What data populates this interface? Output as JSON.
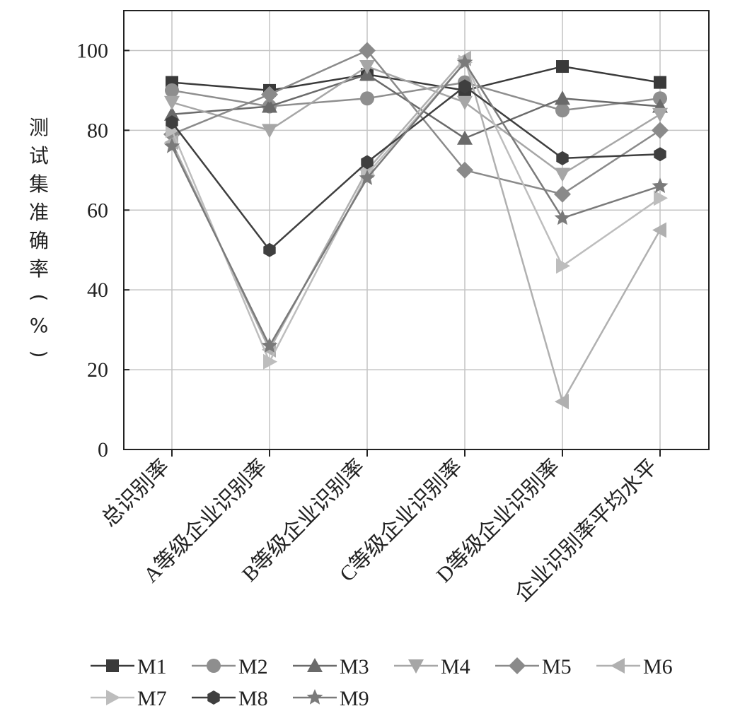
{
  "chart_data": {
    "type": "line",
    "title": "",
    "xlabel": "",
    "ylabel": "测试集准确率(%)",
    "ylim": [
      0,
      110
    ],
    "yticks": [
      0,
      20,
      40,
      60,
      80,
      100
    ],
    "grid": true,
    "legend_position": "bottom",
    "categories": [
      "总识别率",
      "A等级企业识别率",
      "B等级企业识别率",
      "C等级企业识别率",
      "D等级企业识别率",
      "企业识别率平均水平"
    ],
    "series": [
      {
        "name": "M1",
        "marker": "square",
        "color": "#3a3a3a",
        "values": [
          92,
          90,
          94,
          90,
          96,
          92
        ]
      },
      {
        "name": "M2",
        "marker": "circle",
        "color": "#8e8e8e",
        "values": [
          90,
          86,
          88,
          92,
          85,
          88
        ]
      },
      {
        "name": "M3",
        "marker": "triangle-up",
        "color": "#6a6a6a",
        "values": [
          84,
          86,
          94,
          78,
          88,
          86
        ]
      },
      {
        "name": "M4",
        "marker": "triangle-down",
        "color": "#a6a6a6",
        "values": [
          87,
          80,
          96,
          87,
          69,
          84
        ]
      },
      {
        "name": "M5",
        "marker": "diamond",
        "color": "#8a8a8a",
        "values": [
          79,
          89,
          100,
          70,
          64,
          80
        ]
      },
      {
        "name": "M6",
        "marker": "triangle-left",
        "color": "#b0b0b0",
        "values": [
          77,
          25,
          70,
          98,
          12,
          55
        ]
      },
      {
        "name": "M7",
        "marker": "triangle-right",
        "color": "#bdbdbd",
        "values": [
          80,
          22,
          69,
          97,
          46,
          63
        ]
      },
      {
        "name": "M8",
        "marker": "hexagon",
        "color": "#3f3f3f",
        "values": [
          82,
          50,
          72,
          91,
          73,
          74
        ]
      },
      {
        "name": "M9",
        "marker": "star",
        "color": "#7a7a7a",
        "values": [
          76,
          26,
          68,
          97,
          58,
          66
        ]
      }
    ]
  }
}
